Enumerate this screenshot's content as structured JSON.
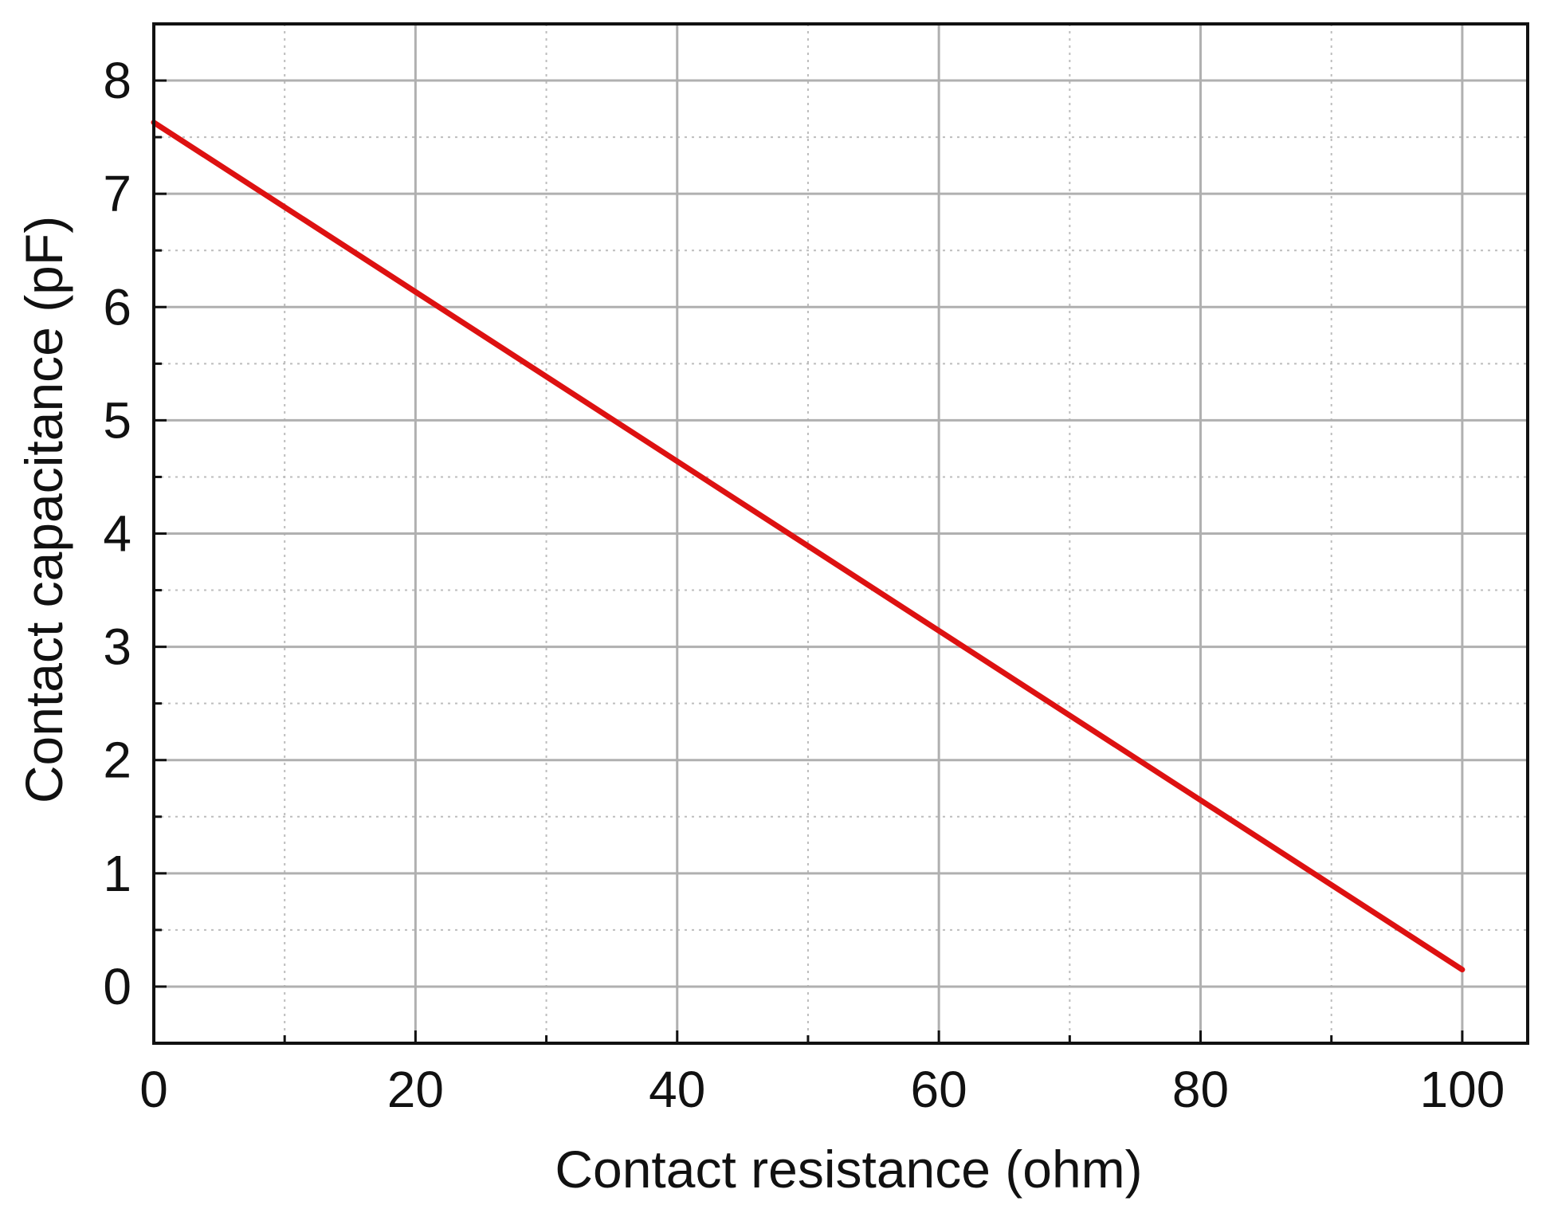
{
  "chart_data": {
    "type": "line",
    "title": "",
    "xlabel": "Contact resistance (ohm)",
    "ylabel": "Contact capacitance (pF)",
    "xlim": [
      0,
      105
    ],
    "ylim": [
      -0.5,
      8.5
    ],
    "x_ticks": [
      "0",
      "20",
      "40",
      "60",
      "80",
      "100"
    ],
    "y_ticks": [
      "0",
      "1",
      "2",
      "3",
      "4",
      "5",
      "6",
      "7",
      "8"
    ],
    "grid": true,
    "legend": "none",
    "series": [
      {
        "color": "#dd1111",
        "x": [
          0,
          100
        ],
        "y": [
          7.63,
          0.15
        ]
      }
    ]
  }
}
